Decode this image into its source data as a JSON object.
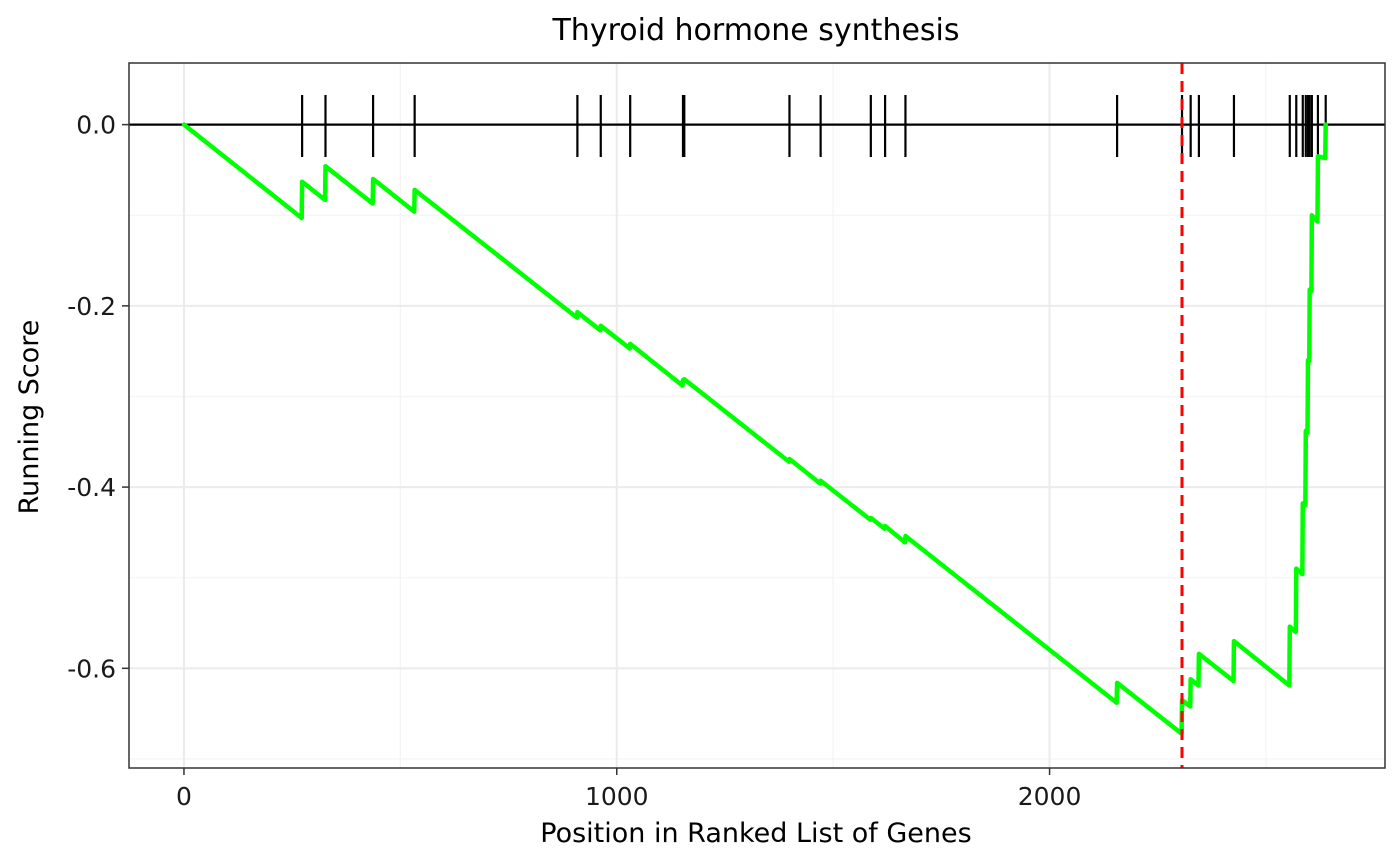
{
  "chart_data": {
    "type": "line",
    "title": "Thyroid hormone synthesis",
    "xlabel": "Position in Ranked List of Genes",
    "ylabel": "Running Score",
    "xlim": [
      -127,
      2775
    ],
    "ylim": [
      -0.71,
      0.068
    ],
    "x_ticks": [
      0,
      1000,
      2000
    ],
    "x_tick_labels": [
      "0",
      "1000",
      "2000"
    ],
    "y_ticks": [
      0.0,
      -0.2,
      -0.4,
      -0.6
    ],
    "y_tick_labels": [
      "0.0",
      "-0.2",
      "-0.4",
      "-0.6"
    ],
    "grid": true,
    "legend": "none",
    "colors": {
      "running_score": "#00FF00",
      "max_deviation_line": "#FF0000",
      "zero_line": "#000000",
      "hit_marks": "#000000",
      "grid_major": "#EBEBEB",
      "grid_minor": "#F4F4F4",
      "panel_border": "#333333"
    },
    "hit_positions": [
      273,
      327,
      437,
      533,
      909,
      963,
      1031,
      1153,
      1156,
      1399,
      1471,
      1587,
      1620,
      1667,
      2156,
      2306,
      2326,
      2345,
      2426,
      2555,
      2570,
      2585,
      2592,
      2597,
      2601,
      2606,
      2620,
      2638
    ],
    "max_deviation_position": 2306,
    "running_score": {
      "x": [
        0,
        272,
        273,
        326,
        327,
        436,
        437,
        532,
        533,
        908,
        909,
        962,
        963,
        1030,
        1031,
        1152,
        1153,
        1155,
        1156,
        1398,
        1399,
        1470,
        1471,
        1586,
        1587,
        1619,
        1620,
        1666,
        1667,
        2155,
        2156,
        2305,
        2306,
        2325,
        2326,
        2344,
        2345,
        2425,
        2426,
        2554,
        2555,
        2569,
        2570,
        2584,
        2585,
        2591,
        2592,
        2596,
        2597,
        2600,
        2601,
        2605,
        2606,
        2619,
        2620,
        2637,
        2638
      ],
      "y": [
        0.0,
        -0.103,
        -0.063,
        -0.083,
        -0.046,
        -0.087,
        -0.06,
        -0.096,
        -0.072,
        -0.213,
        -0.207,
        -0.227,
        -0.222,
        -0.247,
        -0.242,
        -0.288,
        -0.282,
        -0.283,
        -0.281,
        -0.372,
        -0.369,
        -0.396,
        -0.393,
        -0.436,
        -0.434,
        -0.446,
        -0.443,
        -0.461,
        -0.454,
        -0.638,
        -0.616,
        -0.672,
        -0.635,
        -0.642,
        -0.612,
        -0.619,
        -0.584,
        -0.614,
        -0.57,
        -0.619,
        -0.554,
        -0.56,
        -0.49,
        -0.496,
        -0.418,
        -0.42,
        -0.338,
        -0.34,
        -0.26,
        -0.261,
        -0.182,
        -0.184,
        -0.1,
        -0.107,
        -0.035,
        -0.037,
        0.0
      ]
    }
  }
}
